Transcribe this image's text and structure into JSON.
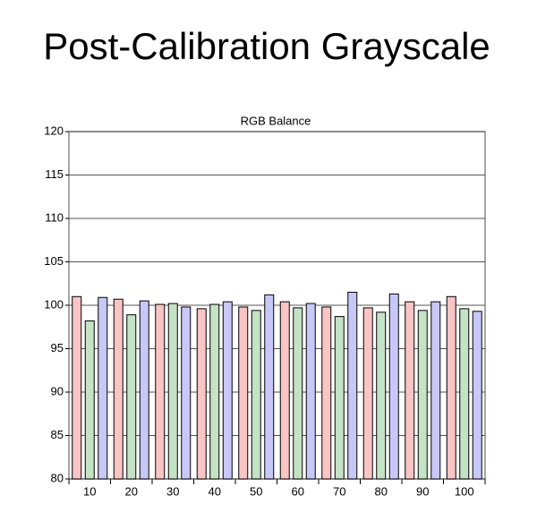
{
  "chart_data": {
    "type": "bar",
    "title": "Post-Calibration Grayscale",
    "subtitle": "RGB Balance",
    "categories": [
      "10",
      "20",
      "30",
      "40",
      "50",
      "60",
      "70",
      "80",
      "90",
      "100"
    ],
    "series": [
      {
        "color": "#f8c4c4",
        "values": [
          101.0,
          100.7,
          100.1,
          99.6,
          99.8,
          100.4,
          99.8,
          99.7,
          100.4,
          101.0
        ]
      },
      {
        "color": "#c4e2c4",
        "values": [
          98.2,
          98.9,
          100.2,
          100.1,
          99.4,
          99.7,
          98.7,
          99.2,
          99.4,
          99.6
        ]
      },
      {
        "color": "#c8c8f8",
        "values": [
          100.9,
          100.5,
          99.8,
          100.4,
          101.2,
          100.2,
          101.5,
          101.3,
          100.4,
          99.3
        ]
      }
    ],
    "ylim": [
      80,
      120
    ],
    "yticks": [
      80,
      85,
      90,
      95,
      100,
      105,
      110,
      115,
      120
    ],
    "grid": true
  }
}
